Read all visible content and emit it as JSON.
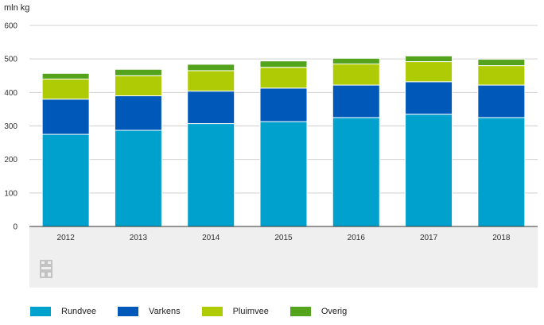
{
  "chart_data": {
    "type": "bar",
    "stacked": true,
    "ylabel": "mln kg",
    "xlabel": "",
    "title": "",
    "ylim": [
      0,
      600
    ],
    "yticks": [
      0,
      100,
      200,
      300,
      400,
      500,
      600
    ],
    "grid": true,
    "legend_position": "bottom",
    "categories": [
      "2012",
      "2013",
      "2014",
      "2015",
      "2016",
      "2017",
      "2018"
    ],
    "series": [
      {
        "name": "Rundvee",
        "color": "#00a1cd",
        "values": [
          275,
          287,
          307,
          313,
          325,
          335,
          325
        ]
      },
      {
        "name": "Varkens",
        "color": "#0058b8",
        "values": [
          105,
          103,
          97,
          100,
          97,
          97,
          97
        ]
      },
      {
        "name": "Pluimvee",
        "color": "#afcb05",
        "values": [
          60,
          60,
          61,
          62,
          63,
          60,
          58
        ]
      },
      {
        "name": "Overig",
        "color": "#53a31d",
        "values": [
          17,
          19,
          19,
          19,
          17,
          17,
          19
        ]
      }
    ]
  },
  "logo": {
    "name": "cbs-logo",
    "color": "#ffffff"
  }
}
